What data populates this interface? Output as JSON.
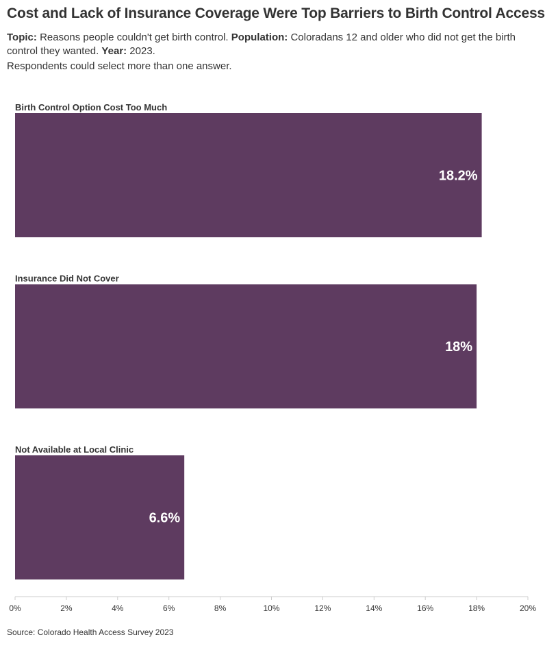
{
  "title": "Cost and Lack of Insurance Coverage Were Top Barriers to Birth Control Access",
  "subtitle": {
    "topic_label": "Topic:",
    "topic_text": "Reasons people couldn't get birth control.",
    "population_label": "Population:",
    "population_text": "Coloradans 12 and older who did not get the birth control they wanted.",
    "year_label": "Year:",
    "year_text": "2023.",
    "note": "Respondents could select more than one answer."
  },
  "source": "Source: Colorado Health Access Survey 2023",
  "colors": {
    "bar": "#5e3b60",
    "label": "#ffffff",
    "axis": "#cccccc",
    "text": "#333333"
  },
  "chart_data": {
    "type": "bar",
    "orientation": "horizontal",
    "categories": [
      "Birth Control Option Cost Too Much",
      "Insurance Did Not Cover",
      "Not Available at Local Clinic"
    ],
    "values": [
      18.2,
      18,
      6.6
    ],
    "data_labels": [
      "18.2%",
      "18%",
      "6.6%"
    ],
    "xlim": [
      0,
      20
    ],
    "x_ticks": [
      0,
      2,
      4,
      6,
      8,
      10,
      12,
      14,
      16,
      18,
      20
    ],
    "x_tick_labels": [
      "0%",
      "2%",
      "4%",
      "6%",
      "8%",
      "10%",
      "12%",
      "14%",
      "16%",
      "18%",
      "20%"
    ],
    "grid": false
  }
}
